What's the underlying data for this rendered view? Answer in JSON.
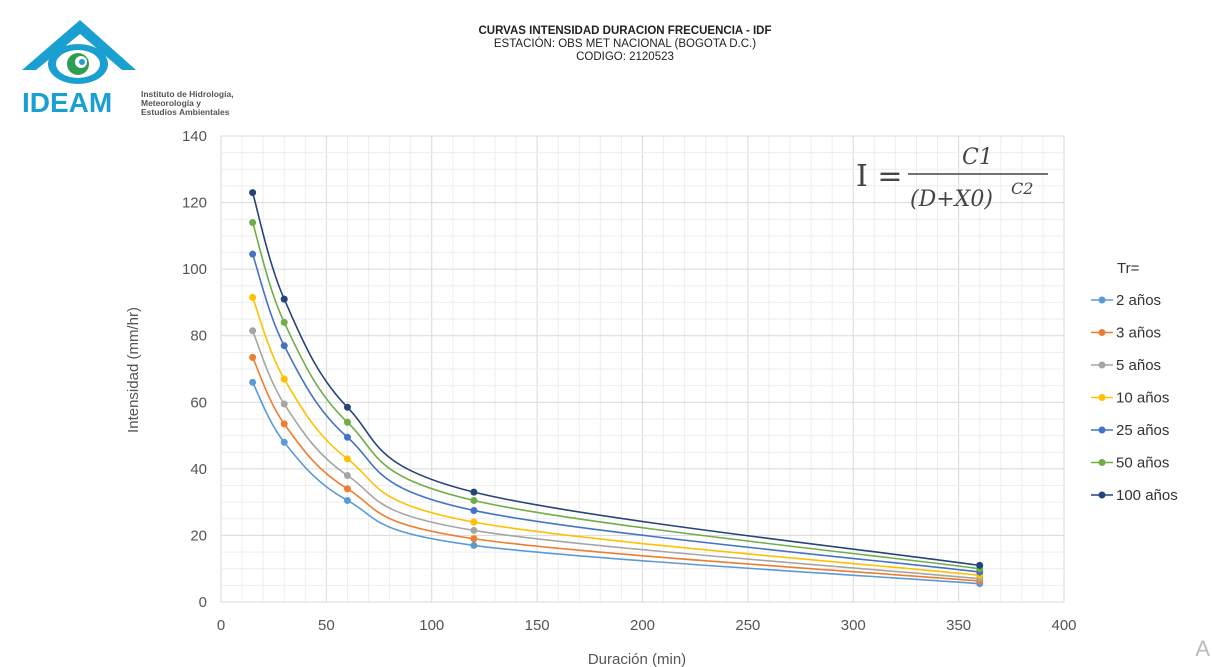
{
  "logo": {
    "brand": "IDEAM",
    "lines": [
      "Instituto de Hidrología,",
      "Meteorología y",
      "Estudios Ambientales"
    ]
  },
  "header": {
    "title": "CURVAS INTENSIDAD DURACION FRECUENCIA - IDF",
    "station": "ESTACIÓN: OBS MET NACIONAL (BOGOTA D.C.)",
    "code": "CODIGO: 2120523"
  },
  "formula": {
    "lhs": "I =",
    "numerator": "C1",
    "denominator": "(D+X0)",
    "exponent": "C2"
  },
  "corner_text": "A",
  "chart_data": {
    "type": "line",
    "xlabel": "Duración (min)",
    "ylabel": "Intensidad (mm/hr)",
    "xlim": [
      0,
      400
    ],
    "ylim": [
      0,
      140
    ],
    "x_ticks": [
      0,
      50,
      100,
      150,
      200,
      250,
      300,
      350,
      400
    ],
    "y_ticks": [
      0,
      20,
      40,
      60,
      80,
      100,
      120,
      140
    ],
    "grid": true,
    "legend_title": "Tr=",
    "legend_position": "right",
    "x": [
      15,
      30,
      60,
      120,
      360
    ],
    "series": [
      {
        "name": "2 años",
        "color": "#5b9bd5",
        "values": [
          66,
          48,
          30.5,
          17,
          5.5
        ]
      },
      {
        "name": "3 años",
        "color": "#ed7d31",
        "values": [
          73.5,
          53.5,
          34,
          19,
          6.3
        ]
      },
      {
        "name": "5 años",
        "color": "#a5a5a5",
        "values": [
          81.5,
          59.5,
          38,
          21.5,
          7
        ]
      },
      {
        "name": "10 años",
        "color": "#ffc000",
        "values": [
          91.5,
          67,
          43,
          24,
          8
        ]
      },
      {
        "name": "25 años",
        "color": "#4472c4",
        "values": [
          104.5,
          77,
          49.5,
          27.5,
          9
        ]
      },
      {
        "name": "50 años",
        "color": "#70ad47",
        "values": [
          114,
          84,
          54,
          30.5,
          10
        ]
      },
      {
        "name": "100 años",
        "color": "#264478",
        "values": [
          123,
          91,
          58.5,
          33,
          11
        ]
      }
    ]
  }
}
